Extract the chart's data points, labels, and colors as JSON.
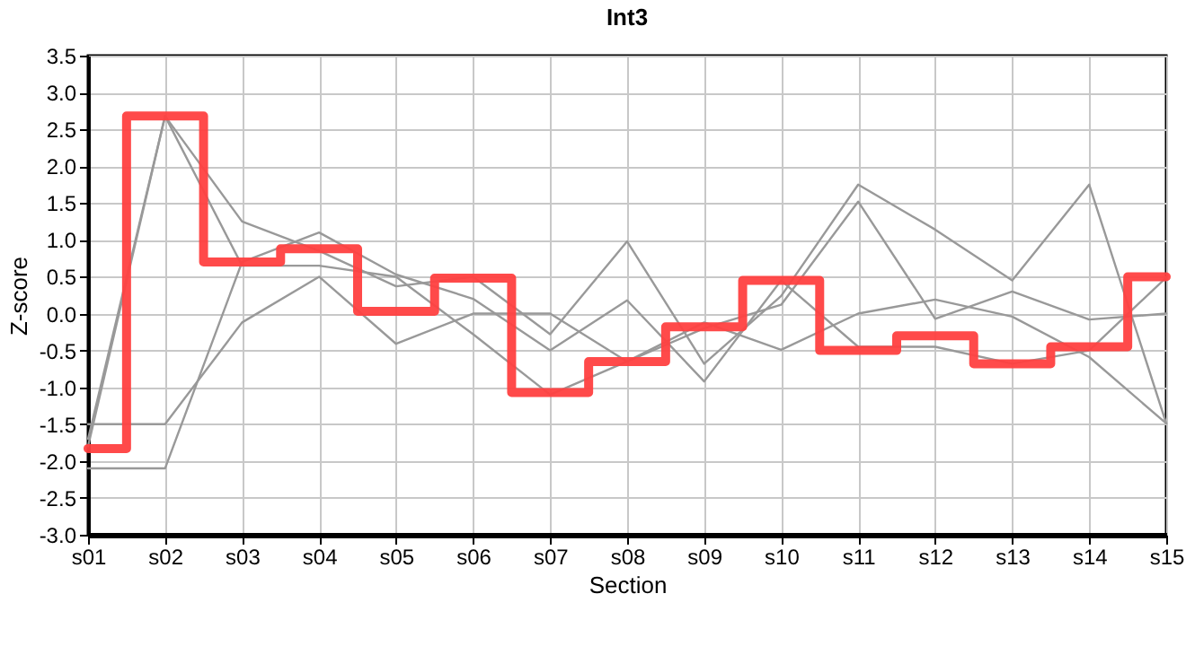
{
  "chart_data": {
    "type": "line",
    "title": "Int3",
    "xlabel": "Section",
    "ylabel": "Z-score",
    "categories": [
      "s01",
      "s02",
      "s03",
      "s04",
      "s05",
      "s06",
      "s07",
      "s08",
      "s09",
      "s10",
      "s11",
      "s12",
      "s13",
      "s14",
      "s15"
    ],
    "series": [
      {
        "color": "#999999",
        "values": [
          -1.5,
          -1.5,
          -0.12,
          0.5,
          -0.41,
          0.0,
          0.0,
          -0.65,
          -0.2,
          0.12,
          1.52,
          -0.07,
          0.3,
          -0.08,
          0.0
        ]
      },
      {
        "color": "#999999",
        "values": [
          -2.1,
          -2.1,
          0.7,
          1.1,
          0.53,
          0.2,
          -0.5,
          0.18,
          -0.92,
          0.45,
          -0.45,
          -0.45,
          -0.68,
          -0.5,
          0.49
        ]
      },
      {
        "color": "#999999",
        "values": [
          -1.7,
          2.68,
          1.25,
          0.85,
          0.37,
          0.5,
          -0.28,
          0.98,
          -0.68,
          0.24,
          1.75,
          1.14,
          0.45,
          1.75,
          -1.49
        ]
      },
      {
        "color": "#999999",
        "values": [
          -1.8,
          2.68,
          0.65,
          0.65,
          0.5,
          -0.28,
          -1.1,
          -0.65,
          -0.12,
          -0.49,
          0.0,
          0.19,
          -0.04,
          -0.59,
          -1.49
        ]
      },
      {
        "type": "step",
        "color": "#ff4040",
        "values": [
          -1.83,
          2.68,
          0.7,
          0.88,
          0.03,
          0.48,
          -1.07,
          -0.65,
          -0.18,
          0.45,
          -0.5,
          -0.3,
          -0.68,
          -0.45,
          0.5
        ]
      }
    ],
    "ylim": [
      -3.0,
      3.5
    ],
    "yticks": [
      {
        "value": -3,
        "label": "-3.0"
      },
      -2.5,
      {
        "value": -2,
        "label": "-2.0"
      },
      -1.5,
      {
        "value": -1,
        "label": "-1.0"
      },
      -0.5,
      {
        "value": 0,
        "label": "0.0"
      },
      0.5,
      {
        "value": 1,
        "label": "1.0"
      },
      1.5,
      {
        "value": 2,
        "label": "2.0"
      },
      2.5,
      {
        "value": 3,
        "label": "3.0"
      },
      3.5
    ],
    "grid": true,
    "marker": "none",
    "line_style": "solid"
  }
}
